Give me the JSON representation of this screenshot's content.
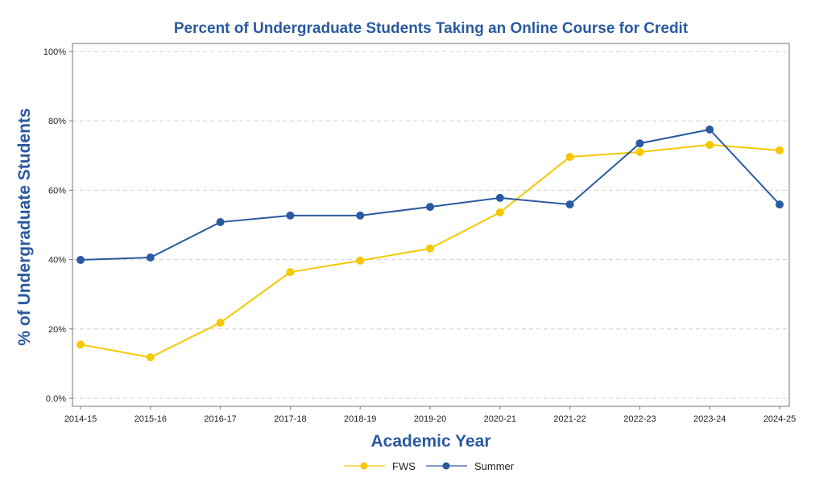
{
  "chart_data": {
    "type": "line",
    "title": "Percent of Undergraduate Students Taking an Online Course for Credit",
    "xlabel": "Academic Year",
    "ylabel": "% of Undergraduate Students",
    "ylim": [
      0,
      100
    ],
    "yticks": [
      0,
      20,
      40,
      60,
      80,
      100
    ],
    "ytick_labels": [
      "0.0%",
      "20%",
      "40%",
      "60%",
      "80%",
      "100%"
    ],
    "grid": true,
    "legend": "bottom-center",
    "categories": [
      "2014-15",
      "2015-16",
      "2016-17",
      "2017-18",
      "2018-19",
      "2019-20",
      "2020-21",
      "2021-22",
      "2022-23",
      "2023-24",
      "2024-25"
    ],
    "series": [
      {
        "name": "FWS",
        "color": "#f5c800",
        "values": [
          15.5,
          11.8,
          21.8,
          36.4,
          39.7,
          43.2,
          53.6,
          69.6,
          71.0,
          73.1,
          71.5
        ]
      },
      {
        "name": "Summer",
        "color": "#2a5aa0",
        "values": [
          39.9,
          40.6,
          50.8,
          52.7,
          52.7,
          55.2,
          57.8,
          55.9,
          73.5,
          77.5,
          55.9
        ]
      }
    ]
  }
}
